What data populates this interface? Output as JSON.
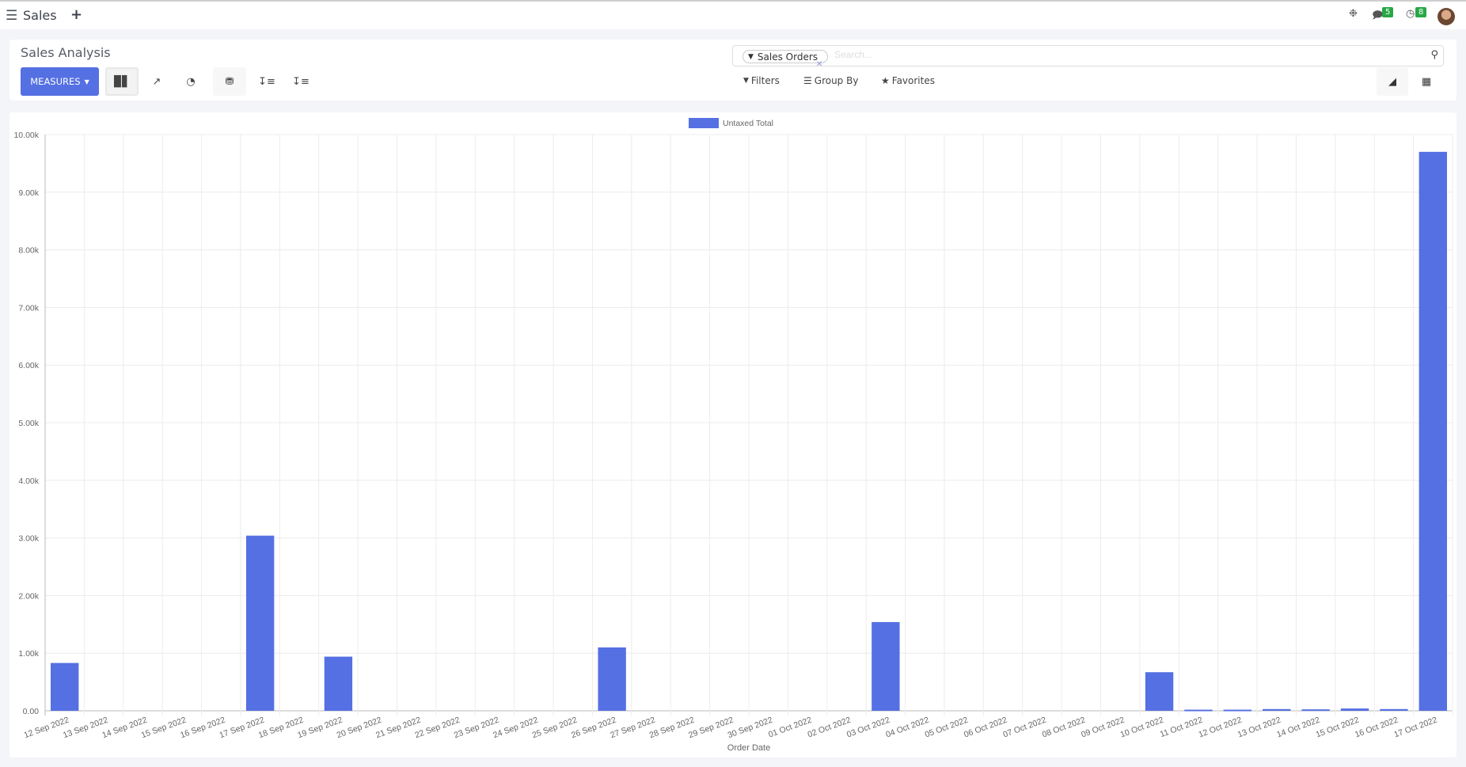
{
  "topbar": {
    "app_name": "Sales",
    "messages_count": "5",
    "activities_count": "8",
    "icons": [
      "menu-icon",
      "plus-icon",
      "bug-icon",
      "chat-icon",
      "clock-icon",
      "avatar"
    ]
  },
  "control_panel": {
    "title": "Sales Analysis",
    "measures_label": "MEASURES",
    "search": {
      "facet": "Sales Orders",
      "placeholder": "Search..."
    },
    "filters_label": "Filters",
    "groupby_label": "Group By",
    "favorites_label": "Favorites",
    "chart_modes": [
      "bar-chart",
      "line-chart",
      "pie-chart"
    ],
    "active_mode": "bar-chart",
    "active_view": "graph"
  },
  "chart_data": {
    "type": "bar",
    "legend": "Untaxed Total",
    "legend_position": "top",
    "xlabel": "Order Date",
    "ylabel": "",
    "ylim": [
      0,
      10000
    ],
    "yticks": [
      "0.00",
      "1.00k",
      "2.00k",
      "3.00k",
      "4.00k",
      "5.00k",
      "6.00k",
      "7.00k",
      "8.00k",
      "9.00k",
      "10.00k"
    ],
    "grid": true,
    "color": "#5570e3",
    "categories": [
      "12 Sep 2022",
      "13 Sep 2022",
      "14 Sep 2022",
      "15 Sep 2022",
      "16 Sep 2022",
      "17 Sep 2022",
      "18 Sep 2022",
      "19 Sep 2022",
      "20 Sep 2022",
      "21 Sep 2022",
      "22 Sep 2022",
      "23 Sep 2022",
      "24 Sep 2022",
      "25 Sep 2022",
      "26 Sep 2022",
      "27 Sep 2022",
      "28 Sep 2022",
      "29 Sep 2022",
      "30 Sep 2022",
      "01 Oct 2022",
      "02 Oct 2022",
      "03 Oct 2022",
      "04 Oct 2022",
      "05 Oct 2022",
      "06 Oct 2022",
      "07 Oct 2022",
      "08 Oct 2022",
      "09 Oct 2022",
      "10 Oct 2022",
      "11 Oct 2022",
      "12 Oct 2022",
      "13 Oct 2022",
      "14 Oct 2022",
      "15 Oct 2022",
      "16 Oct 2022",
      "17 Oct 2022"
    ],
    "values": [
      830,
      0,
      0,
      0,
      0,
      3040,
      0,
      940,
      0,
      0,
      0,
      0,
      0,
      0,
      1100,
      0,
      0,
      0,
      0,
      0,
      0,
      1540,
      0,
      0,
      0,
      0,
      0,
      0,
      670,
      20,
      20,
      30,
      25,
      40,
      30,
      9700
    ]
  }
}
